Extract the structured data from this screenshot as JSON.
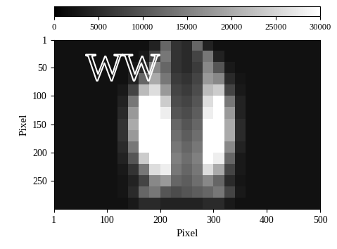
{
  "chart_data": {
    "type": "heatmap",
    "x_label": "Pixel",
    "y_label": "Pixel",
    "color": "gray",
    "annotations": [
      "WW"
    ],
    "x": [
      10,
      30,
      50,
      70,
      90,
      110,
      130,
      150,
      170,
      190,
      210,
      230,
      250,
      270,
      290,
      310,
      330,
      350,
      370,
      390,
      410,
      430,
      450,
      470,
      490
    ],
    "y": [
      10,
      30,
      50,
      70,
      90,
      110,
      130,
      150,
      170,
      190,
      210,
      230,
      250,
      270,
      290
    ],
    "xlim": [
      1,
      500
    ],
    "ylim": [
      300,
      1
    ],
    "xticks": [
      1,
      100,
      200,
      300,
      400,
      500
    ],
    "yticks": [
      1,
      50,
      100,
      150,
      200,
      250
    ],
    "colorbar_range": [
      0,
      30000
    ],
    "colorbar_ticks": [
      0,
      5000,
      10000,
      15000,
      20000,
      25000,
      30000
    ],
    "cells": [
      [
        2000,
        2000,
        2000,
        2000,
        2000,
        2000,
        2000,
        2000,
        2000,
        4000,
        12000,
        6000,
        5000,
        12000,
        4000,
        2000,
        2000,
        2000,
        2000,
        2000,
        2000,
        2000,
        2000,
        2000,
        2000
      ],
      [
        2000,
        2000,
        2000,
        2000,
        2000,
        2000,
        2000,
        2000,
        3000,
        8000,
        14000,
        6000,
        5000,
        8000,
        14000,
        4000,
        2000,
        2000,
        2000,
        2000,
        2000,
        2000,
        2000,
        2000,
        2000
      ],
      [
        2000,
        2000,
        2000,
        2000,
        2000,
        2000,
        2000,
        3000,
        5000,
        16000,
        12000,
        6000,
        5000,
        7000,
        16000,
        10000,
        3000,
        2000,
        2000,
        2000,
        2000,
        2000,
        2000,
        2000,
        2000
      ],
      [
        2000,
        2000,
        2000,
        2000,
        2000,
        2000,
        2000,
        4000,
        12000,
        20000,
        14000,
        7000,
        6000,
        8000,
        18000,
        16000,
        5000,
        2500,
        2000,
        2000,
        2000,
        2000,
        2000,
        2000,
        2000
      ],
      [
        2000,
        2000,
        2000,
        2000,
        2000,
        2000,
        3000,
        8000,
        22000,
        26000,
        18000,
        8000,
        7000,
        9000,
        22000,
        24000,
        8000,
        3000,
        2000,
        2000,
        2000,
        2000,
        2000,
        2000,
        2000
      ],
      [
        2000,
        2000,
        2000,
        2000,
        2000,
        2000,
        4000,
        14000,
        30000,
        30000,
        24000,
        9000,
        8000,
        10000,
        26000,
        30000,
        14000,
        4000,
        2000,
        2000,
        2000,
        2000,
        2000,
        2000,
        2000
      ],
      [
        2000,
        2000,
        2000,
        2000,
        2000,
        2000,
        5000,
        18000,
        30000,
        30000,
        28000,
        10000,
        9000,
        11000,
        28000,
        30000,
        18000,
        4000,
        2000,
        2000,
        2000,
        2000,
        2000,
        2000,
        2000
      ],
      [
        2000,
        2000,
        2000,
        2000,
        2000,
        2000,
        6000,
        20000,
        30000,
        30000,
        30000,
        12000,
        10000,
        12000,
        30000,
        30000,
        20000,
        5000,
        2000,
        2000,
        2000,
        2000,
        2000,
        2000,
        2000
      ],
      [
        2000,
        2000,
        2000,
        2000,
        2000,
        2000,
        6000,
        18000,
        30000,
        30000,
        30000,
        13000,
        11000,
        13000,
        30000,
        30000,
        20000,
        5000,
        2000,
        2000,
        2000,
        2000,
        2000,
        2000,
        2000
      ],
      [
        2000,
        2000,
        2000,
        2000,
        2000,
        2000,
        5000,
        14000,
        30000,
        30000,
        30000,
        14000,
        12000,
        14000,
        30000,
        30000,
        16000,
        4000,
        2000,
        2000,
        2000,
        2000,
        2000,
        2000,
        2000
      ],
      [
        2000,
        2000,
        2000,
        2000,
        2000,
        2000,
        4000,
        10000,
        24000,
        30000,
        30000,
        15000,
        13000,
        15000,
        30000,
        28000,
        12000,
        3000,
        2000,
        2000,
        2000,
        2000,
        2000,
        2000,
        2000
      ],
      [
        2000,
        2000,
        2000,
        2000,
        2000,
        2000,
        3000,
        6000,
        14000,
        26000,
        28000,
        14000,
        12000,
        14000,
        26000,
        20000,
        8000,
        3000,
        2000,
        2000,
        2000,
        2000,
        2000,
        2000,
        2000
      ],
      [
        2000,
        2000,
        2000,
        2000,
        2000,
        2000,
        2500,
        4000,
        8000,
        16000,
        18000,
        12000,
        11000,
        13000,
        16000,
        12000,
        5000,
        2500,
        2000,
        2000,
        2000,
        2000,
        2000,
        2000,
        2000
      ],
      [
        2000,
        2000,
        2000,
        2000,
        2000,
        2000,
        2500,
        5000,
        12000,
        14000,
        10000,
        9000,
        10000,
        11000,
        12000,
        14000,
        8000,
        3000,
        2000,
        2000,
        2000,
        2000,
        2000,
        2000,
        2000
      ],
      [
        2000,
        2000,
        2000,
        2000,
        2000,
        2000,
        2000,
        3000,
        5000,
        5000,
        4000,
        4000,
        4000,
        4000,
        5000,
        5000,
        3000,
        2000,
        2000,
        2000,
        2000,
        2000,
        2000,
        2000,
        2000
      ]
    ]
  }
}
